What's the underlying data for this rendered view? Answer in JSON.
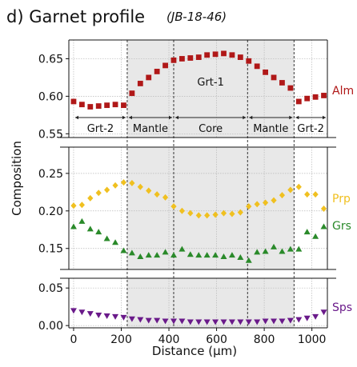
{
  "chart_data": {
    "type": "scatter",
    "title": "d) Garnet profile",
    "subtitle": "(JB-18-46)",
    "xlabel": "Distance (µm)",
    "ylabel": "Composition",
    "xlim": [
      -20,
      1065
    ],
    "x_ticks": [
      "0",
      "200",
      "400",
      "600",
      "800",
      "1000"
    ],
    "x_tick_values": [
      0,
      200,
      400,
      600,
      800,
      1000
    ],
    "grid": true,
    "panels": [
      {
        "name": "top",
        "ylim": [
          0.545,
          0.675
        ],
        "y_ticks": [
          "0.55",
          "0.60",
          "0.65"
        ],
        "y_tick_values": [
          0.55,
          0.6,
          0.65
        ],
        "series": [
          {
            "name": "Alm",
            "color": "#b01818",
            "marker": "square",
            "x": [
              0,
              35,
              70,
              105,
              140,
              175,
              210,
              245,
              280,
              315,
              350,
              385,
              420,
              455,
              490,
              525,
              560,
              595,
              630,
              665,
              700,
              735,
              770,
              805,
              840,
              875,
              910,
              945,
              980,
              1015,
              1050
            ],
            "y": [
              0.593,
              0.589,
              0.586,
              0.587,
              0.588,
              0.589,
              0.588,
              0.604,
              0.617,
              0.625,
              0.633,
              0.641,
              0.648,
              0.65,
              0.651,
              0.652,
              0.655,
              0.656,
              0.657,
              0.655,
              0.652,
              0.647,
              0.64,
              0.632,
              0.625,
              0.618,
              0.611,
              0.593,
              0.597,
              0.599,
              0.601
            ]
          }
        ]
      },
      {
        "name": "middle",
        "ylim": [
          0.122,
          0.285
        ],
        "y_ticks": [
          "0.15",
          "0.20",
          "0.25"
        ],
        "y_tick_values": [
          0.15,
          0.2,
          0.25
        ],
        "series": [
          {
            "name": "Prp",
            "color": "#f0c020",
            "marker": "diamond",
            "x": [
              0,
              35,
              70,
              105,
              140,
              175,
              210,
              245,
              280,
              315,
              350,
              385,
              420,
              455,
              490,
              525,
              560,
              595,
              630,
              665,
              700,
              735,
              770,
              805,
              840,
              875,
              910,
              945,
              980,
              1015,
              1050
            ],
            "y": [
              0.207,
              0.208,
              0.217,
              0.224,
              0.228,
              0.234,
              0.238,
              0.237,
              0.232,
              0.227,
              0.222,
              0.218,
              0.206,
              0.2,
              0.197,
              0.194,
              0.194,
              0.195,
              0.197,
              0.196,
              0.198,
              0.206,
              0.209,
              0.211,
              0.214,
              0.221,
              0.228,
              0.232,
              0.222,
              0.222,
              0.203
            ]
          },
          {
            "name": "Grs",
            "color": "#2a8a2a",
            "marker": "triangle-up",
            "x": [
              0,
              35,
              70,
              105,
              140,
              175,
              210,
              245,
              280,
              315,
              350,
              385,
              420,
              455,
              490,
              525,
              560,
              595,
              630,
              665,
              700,
              735,
              770,
              805,
              840,
              875,
              910,
              945,
              980,
              1015,
              1050
            ],
            "y": [
              0.179,
              0.186,
              0.176,
              0.172,
              0.163,
              0.158,
              0.147,
              0.144,
              0.139,
              0.141,
              0.141,
              0.145,
              0.141,
              0.149,
              0.142,
              0.141,
              0.141,
              0.141,
              0.139,
              0.141,
              0.138,
              0.134,
              0.145,
              0.146,
              0.152,
              0.146,
              0.149,
              0.149,
              0.172,
              0.166,
              0.179
            ]
          }
        ]
      },
      {
        "name": "bottom",
        "ylim": [
          -0.003,
          0.063
        ],
        "y_ticks": [
          "0.00",
          "0.05"
        ],
        "y_tick_values": [
          0.0,
          0.05
        ],
        "series": [
          {
            "name": "Sps",
            "color": "#6a1a8a",
            "marker": "triangle-down",
            "x": [
              0,
              35,
              70,
              105,
              140,
              175,
              210,
              245,
              280,
              315,
              350,
              385,
              420,
              455,
              490,
              525,
              560,
              595,
              630,
              665,
              700,
              735,
              770,
              805,
              840,
              875,
              910,
              945,
              980,
              1015,
              1050
            ],
            "y": [
              0.02,
              0.018,
              0.016,
              0.014,
              0.013,
              0.012,
              0.011,
              0.009,
              0.008,
              0.007,
              0.007,
              0.006,
              0.006,
              0.006,
              0.005,
              0.005,
              0.005,
              0.005,
              0.005,
              0.005,
              0.005,
              0.005,
              0.005,
              0.006,
              0.006,
              0.006,
              0.007,
              0.008,
              0.01,
              0.012,
              0.018
            ]
          }
        ]
      }
    ],
    "zones": {
      "boundaries": [
        225,
        420,
        730,
        925
      ],
      "shaded_range": [
        225,
        925
      ],
      "shade_color": "#e8e8e8",
      "labels": [
        {
          "text": "Grt-2",
          "x_range": [
            0,
            225
          ]
        },
        {
          "text": "Mantle",
          "x_range": [
            225,
            420
          ]
        },
        {
          "text": "Core",
          "x_range": [
            420,
            730
          ]
        },
        {
          "text": "Mantle",
          "x_range": [
            730,
            925
          ]
        },
        {
          "text": "Grt-2",
          "x_range": [
            925,
            1065
          ]
        }
      ],
      "grt1_label": "Grt-1"
    }
  }
}
